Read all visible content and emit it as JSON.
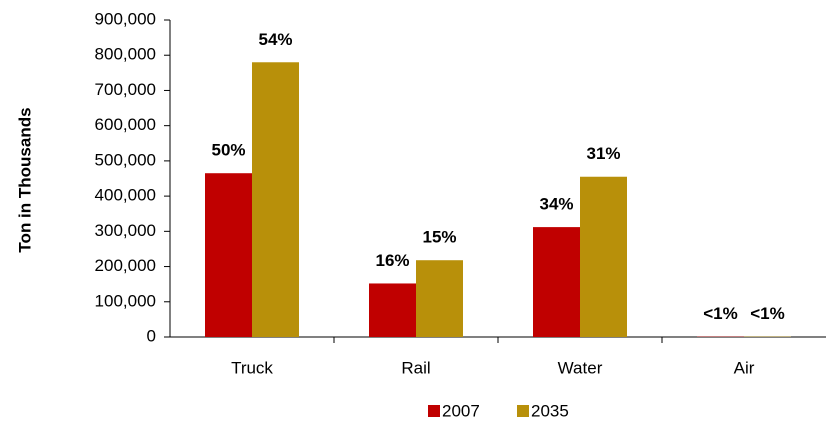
{
  "chart_data": {
    "type": "bar",
    "y_label": "Ton in Thousands",
    "categories": [
      "Truck",
      "Rail",
      "Water",
      "Air"
    ],
    "series": [
      {
        "name": "2007",
        "color": "#c00000",
        "values": [
          465000,
          152000,
          312000,
          1000
        ],
        "share_labels": [
          "50%",
          "16%",
          "34%",
          "<1%"
        ]
      },
      {
        "name": "2035",
        "color": "#b8900a",
        "values": [
          780000,
          218000,
          455000,
          1000
        ],
        "share_labels": [
          "54%",
          "15%",
          "31%",
          "<1%"
        ]
      }
    ],
    "ylim": [
      0,
      900000
    ],
    "yticks": [
      0,
      {
        "value": 100000,
        "label": "100,000"
      },
      {
        "value": 200000,
        "label": "200,000"
      },
      {
        "value": 300000,
        "label": "300,000"
      },
      {
        "value": 400000,
        "label": "400,000"
      },
      {
        "value": 500000,
        "label": "500,000"
      },
      {
        "value": 600000,
        "label": "600,000"
      },
      {
        "value": 700000,
        "label": "700,000"
      },
      {
        "value": 800000,
        "label": "800,000"
      },
      {
        "value": 900000,
        "label": "900,000"
      }
    ],
    "legend": "bottom",
    "grid": false
  }
}
